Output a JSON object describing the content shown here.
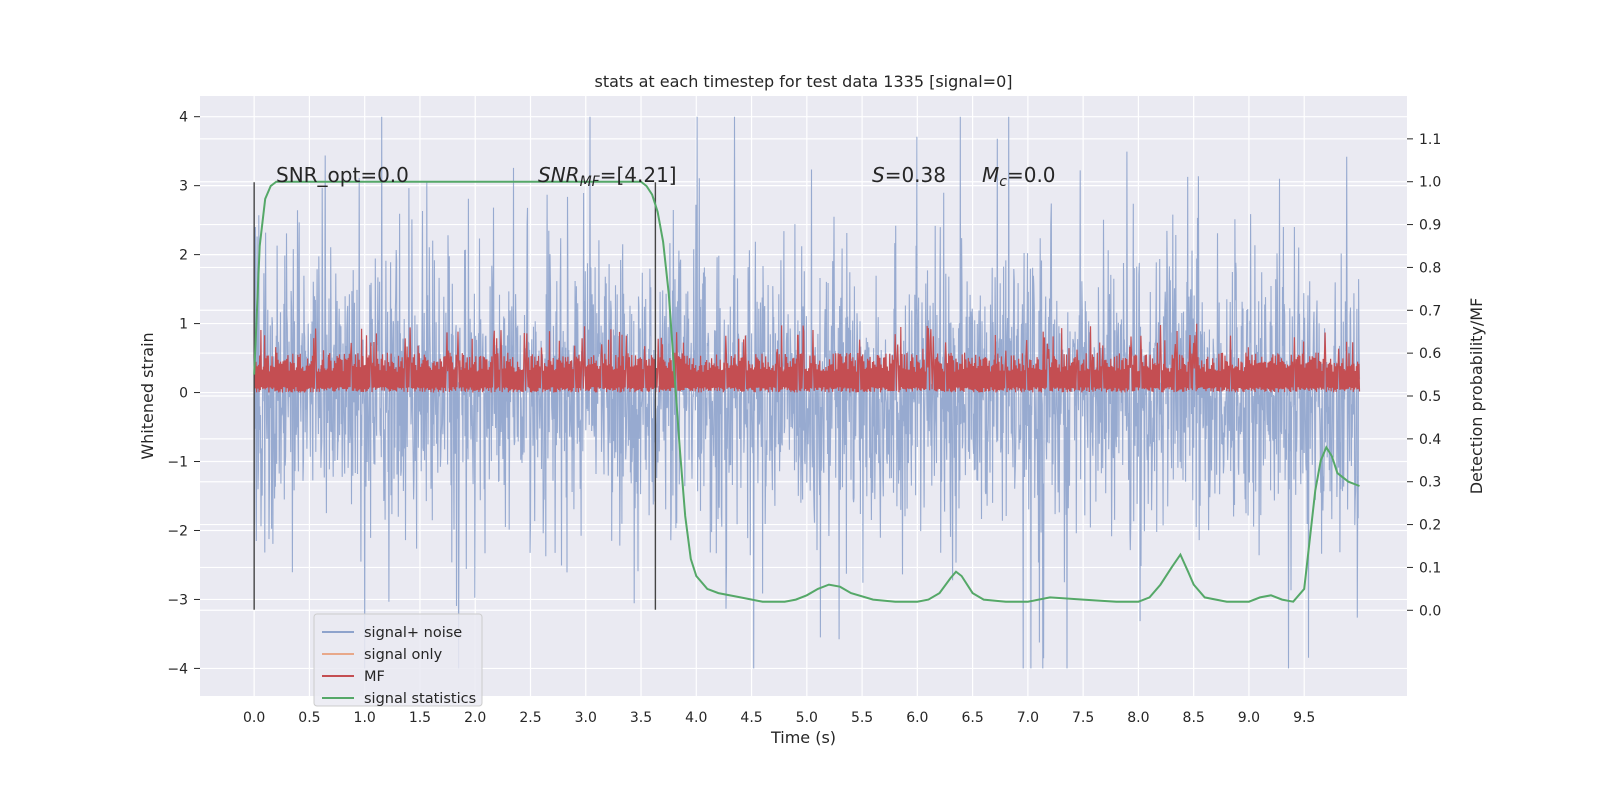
{
  "chart_data": {
    "type": "line",
    "title": "stats at each timestep for test data 1335 [signal=0]",
    "xlabel": "Time (s)",
    "ylabel_left": "Whitened strain",
    "ylabel_right": "Detection probability/MF",
    "xlim": [
      -0.49,
      10.43
    ],
    "ylim_left": [
      -4.4,
      4.3
    ],
    "ylim_right": [
      -0.2,
      1.2
    ],
    "x_ticks": [
      "0.0",
      "0.5",
      "1.0",
      "1.5",
      "2.0",
      "2.5",
      "3.0",
      "3.5",
      "4.0",
      "4.5",
      "5.0",
      "5.5",
      "6.0",
      "6.5",
      "7.0",
      "7.5",
      "8.0",
      "8.5",
      "9.0",
      "9.5"
    ],
    "y_ticks_left": [
      "4",
      "3",
      "2",
      "1",
      "0",
      "−1",
      "−2",
      "−3",
      "−4"
    ],
    "y_ticks_right": [
      "1.1",
      "1.0",
      "0.9",
      "0.8",
      "0.7",
      "0.6",
      "0.5",
      "0.4",
      "0.3",
      "0.2",
      "0.1",
      "0.0"
    ],
    "grid": true,
    "legend_position": "lower-left",
    "legend": [
      {
        "label": "signal+ noise",
        "color": "#8ea3cc"
      },
      {
        "label": "signal only",
        "color": "#e8a88a"
      },
      {
        "label": "MF",
        "color": "#c44e52"
      },
      {
        "label": "signal statistics",
        "color": "#55a868"
      }
    ],
    "annotations": {
      "snr_opt": "SNR_opt=0.0",
      "snr_mf_label": "SNR",
      "snr_mf_sub": "MF",
      "snr_mf_value": "=[4.21]",
      "s_label": "S",
      "s_value": "=0.38",
      "mc_label": "M",
      "mc_sub": "c",
      "mc_value": "=0.0"
    },
    "vertical_lines_x": [
      0.0,
      3.63
    ],
    "noise_series": {
      "name": "signal+ noise",
      "x_range": [
        0.0,
        10.0
      ],
      "typical_amplitude": 1.3,
      "max_abs": 4.0
    },
    "mf_series": {
      "name": "MF",
      "x_range": [
        0.0,
        10.0
      ],
      "baseline": 0.0,
      "typical_peak": 0.55,
      "max": 1.0
    },
    "signal_statistics": {
      "name": "signal statistics",
      "x": [
        0.0,
        0.05,
        0.1,
        0.15,
        0.2,
        0.3,
        0.5,
        1.0,
        2.0,
        3.0,
        3.3,
        3.5,
        3.55,
        3.6,
        3.65,
        3.7,
        3.75,
        3.8,
        3.85,
        3.9,
        3.95,
        4.0,
        4.1,
        4.2,
        4.4,
        4.6,
        4.8,
        4.9,
        5.0,
        5.1,
        5.2,
        5.3,
        5.4,
        5.6,
        5.8,
        6.0,
        6.1,
        6.2,
        6.3,
        6.35,
        6.4,
        6.5,
        6.6,
        6.8,
        7.0,
        7.2,
        7.5,
        7.8,
        8.0,
        8.1,
        8.2,
        8.3,
        8.38,
        8.45,
        8.5,
        8.6,
        8.8,
        9.0,
        9.1,
        9.2,
        9.3,
        9.4,
        9.5,
        9.6,
        9.65,
        9.7,
        9.75,
        9.8,
        9.9,
        10.0
      ],
      "y": [
        0.55,
        0.85,
        0.96,
        0.99,
        1.0,
        1.0,
        1.0,
        1.0,
        1.0,
        1.0,
        1.0,
        1.0,
        0.99,
        0.97,
        0.93,
        0.86,
        0.74,
        0.56,
        0.38,
        0.22,
        0.12,
        0.08,
        0.05,
        0.04,
        0.03,
        0.02,
        0.02,
        0.025,
        0.035,
        0.05,
        0.06,
        0.055,
        0.04,
        0.025,
        0.02,
        0.02,
        0.025,
        0.04,
        0.075,
        0.09,
        0.08,
        0.04,
        0.025,
        0.02,
        0.02,
        0.03,
        0.025,
        0.02,
        0.02,
        0.03,
        0.06,
        0.1,
        0.13,
        0.09,
        0.06,
        0.03,
        0.02,
        0.02,
        0.03,
        0.035,
        0.025,
        0.02,
        0.05,
        0.28,
        0.35,
        0.38,
        0.36,
        0.32,
        0.3,
        0.29
      ]
    }
  }
}
